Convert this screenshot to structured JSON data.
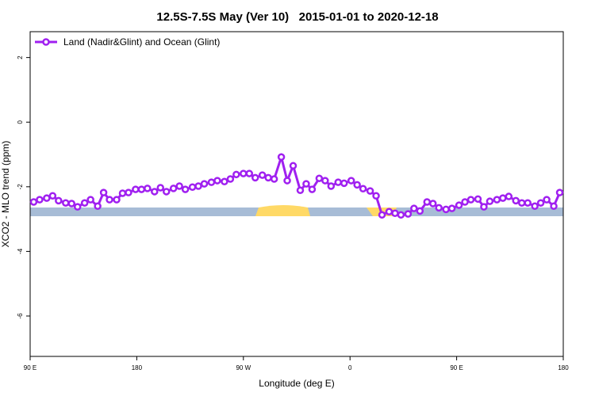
{
  "chart_data": {
    "type": "line",
    "title": "12.5S-7.5S May (Ver 10)   2015-01-01 to 2020-12-18",
    "xlabel": "Longitude (deg E)",
    "ylabel": "XCO2 - MLO trend (ppm)",
    "xlim": [
      90,
      540
    ],
    "xticks": [
      {
        "value": 90,
        "label": "90 E"
      },
      180,
      {
        "value": 270,
        "label": "90 W"
      },
      {
        "value": 360,
        "label": "0"
      },
      {
        "value": 450,
        "label": "90 E"
      },
      {
        "value": 540,
        "label": "180"
      }
    ],
    "ylim": [
      -7.25,
      2.8
    ],
    "yticks": [
      -6,
      -4,
      -2,
      0,
      2
    ],
    "legend": "top-left",
    "x": [
      93,
      98,
      104,
      109,
      114,
      120,
      125,
      130,
      136,
      141,
      147,
      152,
      157,
      163,
      168,
      173,
      179,
      184,
      189,
      195,
      200,
      205,
      211,
      216,
      221,
      227,
      232,
      237,
      243,
      248,
      254,
      259,
      264,
      270,
      275,
      280,
      286,
      291,
      296,
      302,
      307,
      312,
      318,
      323,
      328,
      334,
      339,
      344,
      350,
      355,
      361,
      366,
      371,
      377,
      382,
      387,
      393,
      398,
      403,
      409,
      414,
      419,
      425,
      430,
      435,
      441,
      446,
      452,
      457,
      462,
      468,
      473,
      478,
      484,
      489,
      494,
      500,
      505,
      510,
      516,
      521,
      526,
      532,
      537
    ],
    "series": [
      {
        "name": "Land (Nadir&Glint) and Ocean (Glint)",
        "color": "#a020f0",
        "values": [
          -2.47,
          -2.4,
          -2.35,
          -2.28,
          -2.43,
          -2.5,
          -2.52,
          -2.62,
          -2.5,
          -2.4,
          -2.6,
          -2.18,
          -2.4,
          -2.4,
          -2.2,
          -2.18,
          -2.08,
          -2.08,
          -2.05,
          -2.15,
          -2.03,
          -2.15,
          -2.05,
          -1.98,
          -2.08,
          -2.01,
          -1.98,
          -1.91,
          -1.86,
          -1.81,
          -1.84,
          -1.76,
          -1.62,
          -1.59,
          -1.59,
          -1.72,
          -1.64,
          -1.72,
          -1.76,
          -1.08,
          -1.81,
          -1.35,
          -2.11,
          -1.91,
          -2.08,
          -1.74,
          -1.81,
          -1.98,
          -1.86,
          -1.89,
          -1.81,
          -1.94,
          -2.06,
          -2.13,
          -2.28,
          -2.87,
          -2.77,
          -2.82,
          -2.87,
          -2.84,
          -2.67,
          -2.75,
          -2.47,
          -2.52,
          -2.65,
          -2.7,
          -2.67,
          -2.57,
          -2.47,
          -2.4,
          -2.38,
          -2.62,
          -2.45,
          -2.4,
          -2.35,
          -2.3,
          -2.43,
          -2.5,
          -2.5,
          -2.6,
          -2.5,
          -2.4,
          -2.6,
          -2.18
        ]
      }
    ]
  }
}
